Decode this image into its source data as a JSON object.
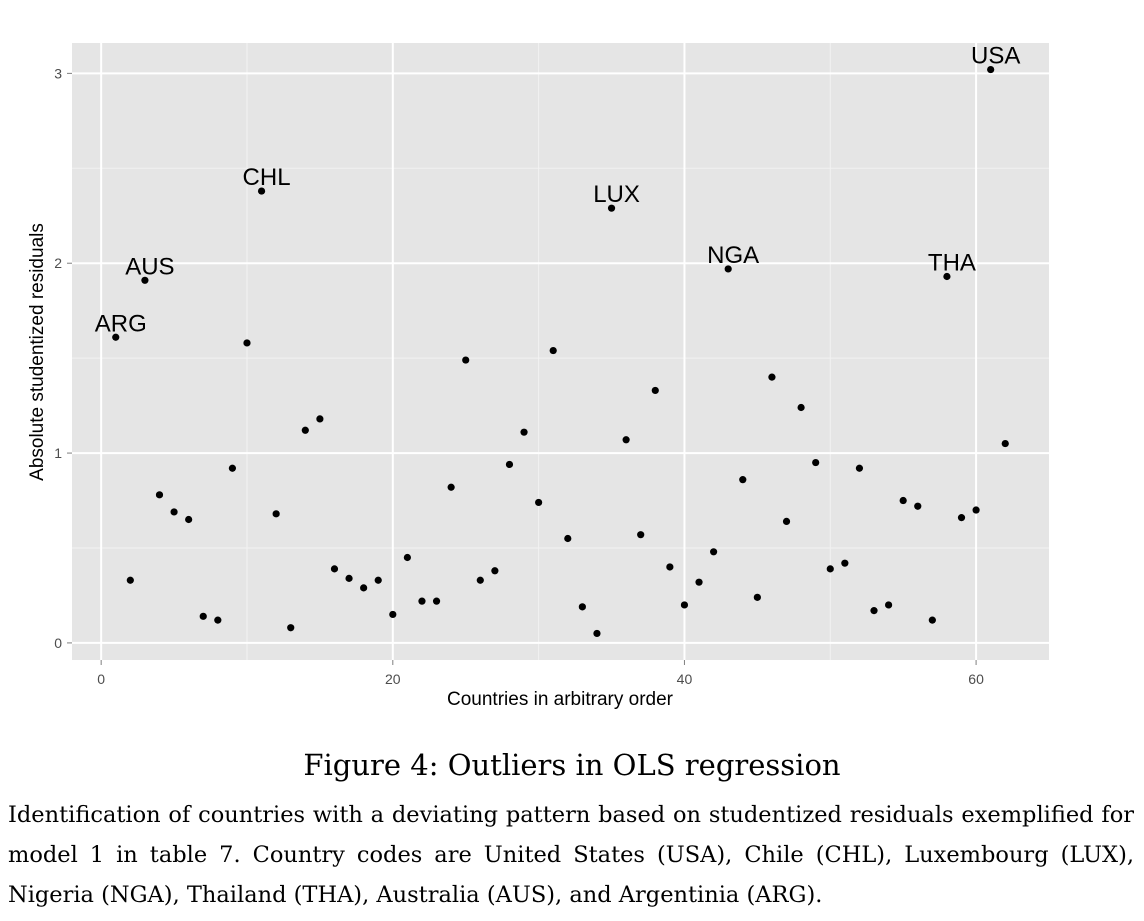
{
  "caption": {
    "title": "Figure 4: Outliers in OLS regression",
    "text": "Identification of countries with a deviating pattern based on studentized residuals exemplified for model 1 in table 7. Country codes are United States (USA), Chile (CHL), Luxembourg (LUX), Nigeria (NGA), Thailand (THA), Australia (AUS), and Argentinia (ARG)."
  },
  "chart_data": {
    "type": "scatter",
    "xlabel": "Countries in arbitrary order",
    "ylabel": "Absolute studentized residuals",
    "xlim": [
      -2,
      65
    ],
    "ylim": [
      -0.09,
      3.16
    ],
    "x_ticks": [
      0,
      20,
      40,
      60
    ],
    "y_ticks": [
      0,
      1,
      2,
      3
    ],
    "grid": true,
    "panel_color": "#e5e5e5",
    "grid_color": "#ffffff",
    "point_color": "#000000",
    "series": [
      {
        "x": [
          1,
          2,
          3,
          4,
          5,
          6,
          7,
          8,
          9,
          10,
          11,
          12,
          13,
          14,
          15,
          16,
          17,
          18,
          19,
          20,
          21,
          22,
          23,
          24,
          25,
          26,
          27,
          28,
          29,
          30,
          31,
          32,
          33,
          34,
          35,
          36,
          37,
          38,
          39,
          40,
          41,
          42,
          43,
          44,
          45,
          46,
          47,
          48,
          49,
          50,
          51,
          52,
          53,
          54,
          55,
          56,
          57,
          58,
          59,
          60,
          61,
          62
        ],
        "values": [
          1.61,
          0.33,
          1.91,
          0.78,
          0.69,
          0.65,
          0.14,
          0.12,
          0.92,
          1.58,
          2.38,
          0.68,
          0.08,
          1.12,
          1.18,
          0.39,
          0.34,
          0.29,
          0.33,
          0.15,
          0.45,
          0.22,
          0.22,
          0.82,
          1.49,
          0.33,
          0.38,
          0.94,
          1.11,
          0.74,
          1.54,
          0.55,
          0.19,
          0.05,
          2.29,
          1.07,
          0.57,
          1.33,
          0.4,
          0.2,
          0.32,
          0.48,
          1.97,
          0.86,
          0.24,
          1.4,
          0.64,
          1.24,
          0.95,
          0.39,
          0.42,
          0.92,
          0.17,
          0.2,
          0.75,
          0.72,
          0.12,
          1.93,
          0.66,
          0.7,
          3.02,
          1.05
        ]
      }
    ],
    "annotations": [
      {
        "text": "ARG",
        "x": 1,
        "y": 1.61
      },
      {
        "text": "AUS",
        "x": 3,
        "y": 1.91
      },
      {
        "text": "CHL",
        "x": 11,
        "y": 2.38
      },
      {
        "text": "LUX",
        "x": 35,
        "y": 2.29
      },
      {
        "text": "NGA",
        "x": 43,
        "y": 1.97
      },
      {
        "text": "THA",
        "x": 58,
        "y": 1.93
      },
      {
        "text": "USA",
        "x": 61,
        "y": 3.02
      }
    ]
  }
}
